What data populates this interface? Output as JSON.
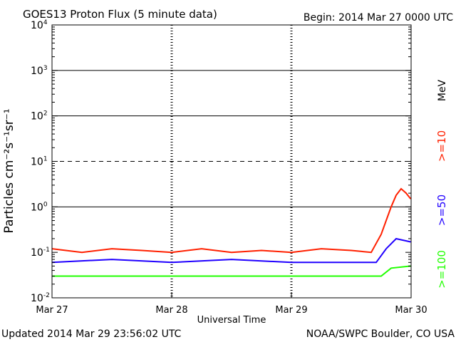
{
  "chart_data": {
    "type": "line",
    "title": "GOES13 Proton Flux (5 minute data)",
    "begin_label": "Begin: 2014 Mar 27 0000 UTC",
    "ylabel": "Particles cm⁻²s⁻¹sr⁻¹",
    "xlabel": "Universal Time",
    "yscale": "log",
    "ylim": [
      0.01,
      10000
    ],
    "y_ticks": [
      {
        "value": 0.01,
        "base": "10",
        "exp": "-2"
      },
      {
        "value": 0.1,
        "base": "10",
        "exp": "-1"
      },
      {
        "value": 1,
        "base": "10",
        "exp": "0"
      },
      {
        "value": 10,
        "base": "10",
        "exp": "1"
      },
      {
        "value": 100,
        "base": "10",
        "exp": "2"
      },
      {
        "value": 1000,
        "base": "10",
        "exp": "3"
      },
      {
        "value": 10000,
        "base": "10",
        "exp": "4"
      }
    ],
    "xlim": [
      "2014-03-27T00:00",
      "2014-03-30T00:00"
    ],
    "x_ticks": [
      {
        "value": "2014-03-27T00:00",
        "label": "Mar 27"
      },
      {
        "value": "2014-03-28T00:00",
        "label": "Mar 28"
      },
      {
        "value": "2014-03-29T00:00",
        "label": "Mar 29"
      },
      {
        "value": "2014-03-30T00:00",
        "label": "Mar 30"
      }
    ],
    "threshold_lines": [
      {
        "value": 10,
        "style": "dashed"
      },
      {
        "value": 1,
        "style": "solid"
      },
      {
        "value": 100,
        "style": "solid"
      },
      {
        "value": 1000,
        "style": "solid"
      }
    ],
    "series": [
      {
        "name": ">=10",
        "color": "#ff2000",
        "points": [
          [
            "2014-03-27T00:00",
            0.12
          ],
          [
            "2014-03-27T06:00",
            0.1
          ],
          [
            "2014-03-27T12:00",
            0.12
          ],
          [
            "2014-03-27T18:00",
            0.11
          ],
          [
            "2014-03-28T00:00",
            0.1
          ],
          [
            "2014-03-28T06:00",
            0.12
          ],
          [
            "2014-03-28T12:00",
            0.1
          ],
          [
            "2014-03-28T18:00",
            0.11
          ],
          [
            "2014-03-29T00:00",
            0.1
          ],
          [
            "2014-03-29T06:00",
            0.12
          ],
          [
            "2014-03-29T12:00",
            0.11
          ],
          [
            "2014-03-29T16:00",
            0.1
          ],
          [
            "2014-03-29T18:00",
            0.25
          ],
          [
            "2014-03-29T19:00",
            0.5
          ],
          [
            "2014-03-29T20:00",
            1.0
          ],
          [
            "2014-03-29T21:00",
            1.8
          ],
          [
            "2014-03-29T22:00",
            2.5
          ],
          [
            "2014-03-29T23:00",
            2.0
          ],
          [
            "2014-03-29T23:55",
            1.5
          ]
        ]
      },
      {
        "name": ">=50",
        "color": "#2000ff",
        "points": [
          [
            "2014-03-27T00:00",
            0.06
          ],
          [
            "2014-03-27T12:00",
            0.07
          ],
          [
            "2014-03-28T00:00",
            0.06
          ],
          [
            "2014-03-28T12:00",
            0.07
          ],
          [
            "2014-03-29T00:00",
            0.06
          ],
          [
            "2014-03-29T12:00",
            0.06
          ],
          [
            "2014-03-29T17:00",
            0.06
          ],
          [
            "2014-03-29T19:00",
            0.12
          ],
          [
            "2014-03-29T21:00",
            0.2
          ],
          [
            "2014-03-29T23:55",
            0.17
          ]
        ]
      },
      {
        "name": ">=100",
        "color": "#20ff00",
        "points": [
          [
            "2014-03-27T00:00",
            0.03
          ],
          [
            "2014-03-27T12:00",
            0.03
          ],
          [
            "2014-03-28T00:00",
            0.03
          ],
          [
            "2014-03-28T12:00",
            0.03
          ],
          [
            "2014-03-29T00:00",
            0.03
          ],
          [
            "2014-03-29T12:00",
            0.03
          ],
          [
            "2014-03-29T18:00",
            0.03
          ],
          [
            "2014-03-29T20:00",
            0.045
          ],
          [
            "2014-03-29T23:55",
            0.05
          ]
        ]
      }
    ],
    "legend_unit": "MeV",
    "legend_placement": "right"
  },
  "footer": {
    "updated": "Updated 2014 Mar 29 23:56:02 UTC",
    "source": "NOAA/SWPC Boulder, CO USA"
  }
}
